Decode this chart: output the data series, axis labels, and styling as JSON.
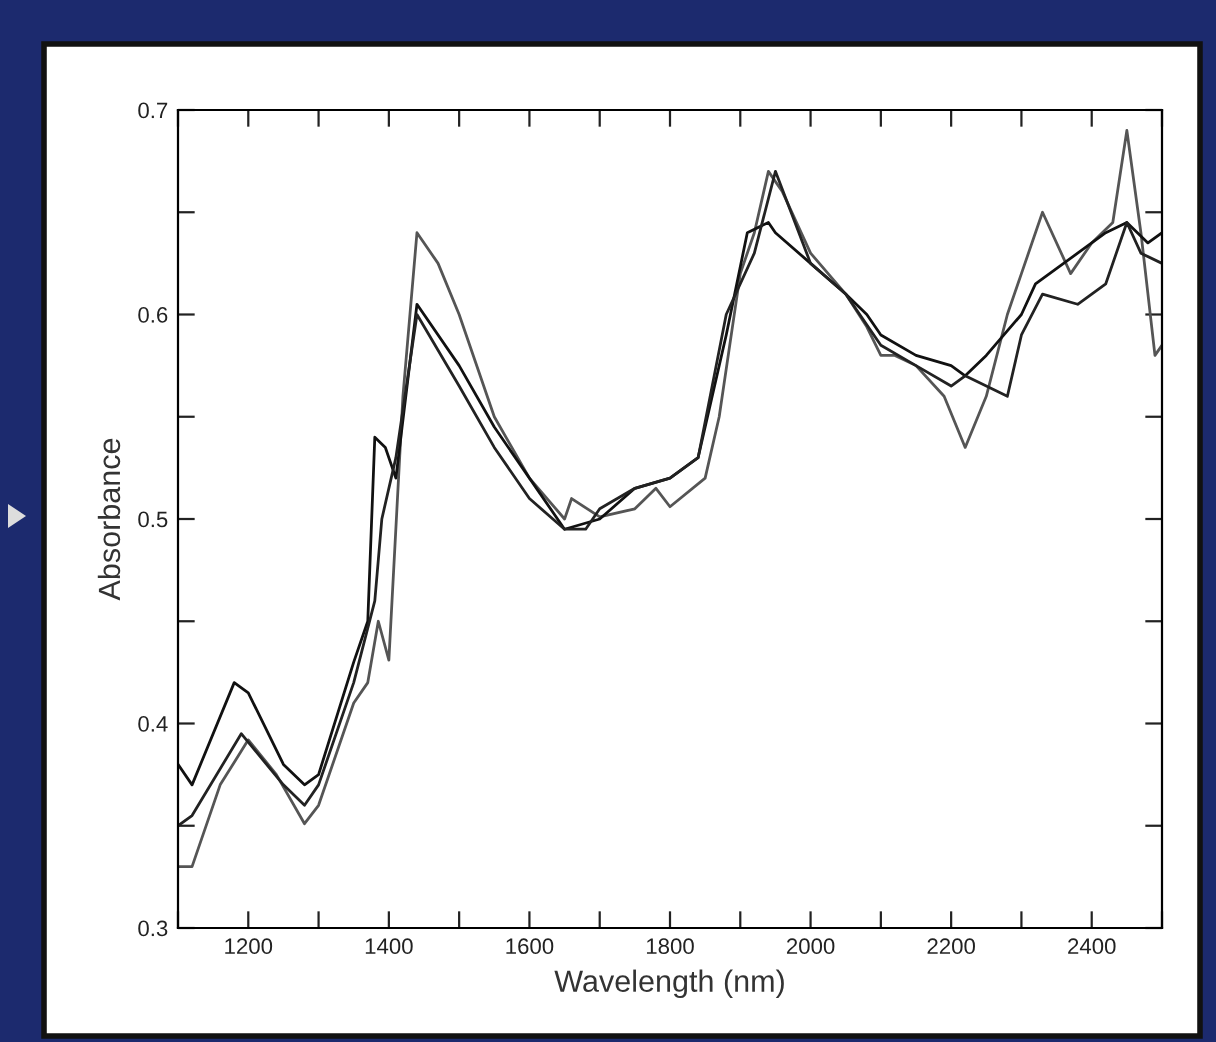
{
  "chart_data": {
    "type": "line",
    "xlabel": "Wavelength (nm)",
    "ylabel": "Absorbance",
    "xlim": [
      1100,
      2500
    ],
    "ylim": [
      0.3,
      0.7
    ],
    "xticks": [
      {
        "value": 1100,
        "label": null
      },
      1200,
      {
        "value": 1300,
        "label": null
      },
      1400,
      {
        "value": 1500,
        "label": null
      },
      1600,
      {
        "value": 1700,
        "label": null
      },
      1800,
      {
        "value": 1900,
        "label": null
      },
      2000,
      {
        "value": 2100,
        "label": null
      },
      2200,
      {
        "value": 2300,
        "label": null
      },
      2400,
      {
        "value": 2500,
        "label": null
      }
    ],
    "yticks": [
      0.3,
      {
        "value": 0.35,
        "label": null
      },
      0.4,
      {
        "value": 0.45,
        "label": null
      },
      0.5,
      {
        "value": 0.55,
        "label": null
      },
      0.6,
      {
        "value": 0.65,
        "label": null
      },
      0.7
    ],
    "grid": false,
    "marker": "none",
    "line_style": "solid",
    "series": [
      {
        "color": "#555555",
        "x": [
          1100,
          1120,
          1160,
          1200,
          1240,
          1280,
          1300,
          1350,
          1370,
          1385,
          1400,
          1420,
          1440,
          1470,
          1500,
          1550,
          1600,
          1650,
          1660,
          1700,
          1750,
          1780,
          1800,
          1850,
          1870,
          1900,
          1920,
          1940,
          1960,
          2000,
          2050,
          2080,
          2100,
          2120,
          2150,
          2190,
          2220,
          2250,
          2280,
          2300,
          2330,
          2370,
          2400,
          2430,
          2450,
          2470,
          2490,
          2500
        ],
        "values": [
          0.33,
          0.33,
          0.37,
          0.392,
          0.375,
          0.351,
          0.36,
          0.41,
          0.42,
          0.45,
          0.431,
          0.56,
          0.64,
          0.625,
          0.6,
          0.55,
          0.52,
          0.5,
          0.51,
          0.501,
          0.505,
          0.515,
          0.506,
          0.52,
          0.55,
          0.62,
          0.64,
          0.67,
          0.66,
          0.63,
          0.61,
          0.594,
          0.58,
          0.58,
          0.575,
          0.56,
          0.535,
          0.56,
          0.6,
          0.62,
          0.65,
          0.62,
          0.635,
          0.645,
          0.69,
          0.64,
          0.58,
          0.585
        ]
      },
      {
        "color": "#111111",
        "x": [
          1100,
          1120,
          1180,
          1200,
          1250,
          1280,
          1300,
          1350,
          1370,
          1380,
          1395,
          1410,
          1440,
          1500,
          1550,
          1600,
          1650,
          1700,
          1750,
          1800,
          1840,
          1880,
          1910,
          1940,
          1950,
          2000,
          2050,
          2080,
          2100,
          2150,
          2200,
          2220,
          2250,
          2300,
          2320,
          2380,
          2420,
          2450,
          2480,
          2500
        ],
        "values": [
          0.38,
          0.37,
          0.42,
          0.415,
          0.38,
          0.37,
          0.375,
          0.43,
          0.45,
          0.54,
          0.535,
          0.52,
          0.605,
          0.575,
          0.545,
          0.52,
          0.495,
          0.5,
          0.515,
          0.52,
          0.53,
          0.59,
          0.64,
          0.645,
          0.64,
          0.625,
          0.61,
          0.6,
          0.59,
          0.58,
          0.575,
          0.57,
          0.58,
          0.6,
          0.615,
          0.63,
          0.64,
          0.645,
          0.635,
          0.64
        ]
      },
      {
        "color": "#222222",
        "x": [
          1100,
          1120,
          1190,
          1250,
          1280,
          1300,
          1350,
          1380,
          1390,
          1410,
          1440,
          1500,
          1550,
          1600,
          1650,
          1680,
          1700,
          1750,
          1800,
          1840,
          1880,
          1920,
          1950,
          2000,
          2050,
          2100,
          2150,
          2200,
          2220,
          2280,
          2300,
          2330,
          2380,
          2420,
          2450,
          2470,
          2500
        ],
        "values": [
          0.35,
          0.355,
          0.395,
          0.37,
          0.36,
          0.37,
          0.42,
          0.46,
          0.5,
          0.53,
          0.6,
          0.565,
          0.535,
          0.51,
          0.495,
          0.495,
          0.505,
          0.515,
          0.52,
          0.53,
          0.6,
          0.63,
          0.67,
          0.625,
          0.61,
          0.585,
          0.575,
          0.565,
          0.57,
          0.56,
          0.59,
          0.61,
          0.605,
          0.615,
          0.645,
          0.63,
          0.625
        ]
      }
    ]
  }
}
